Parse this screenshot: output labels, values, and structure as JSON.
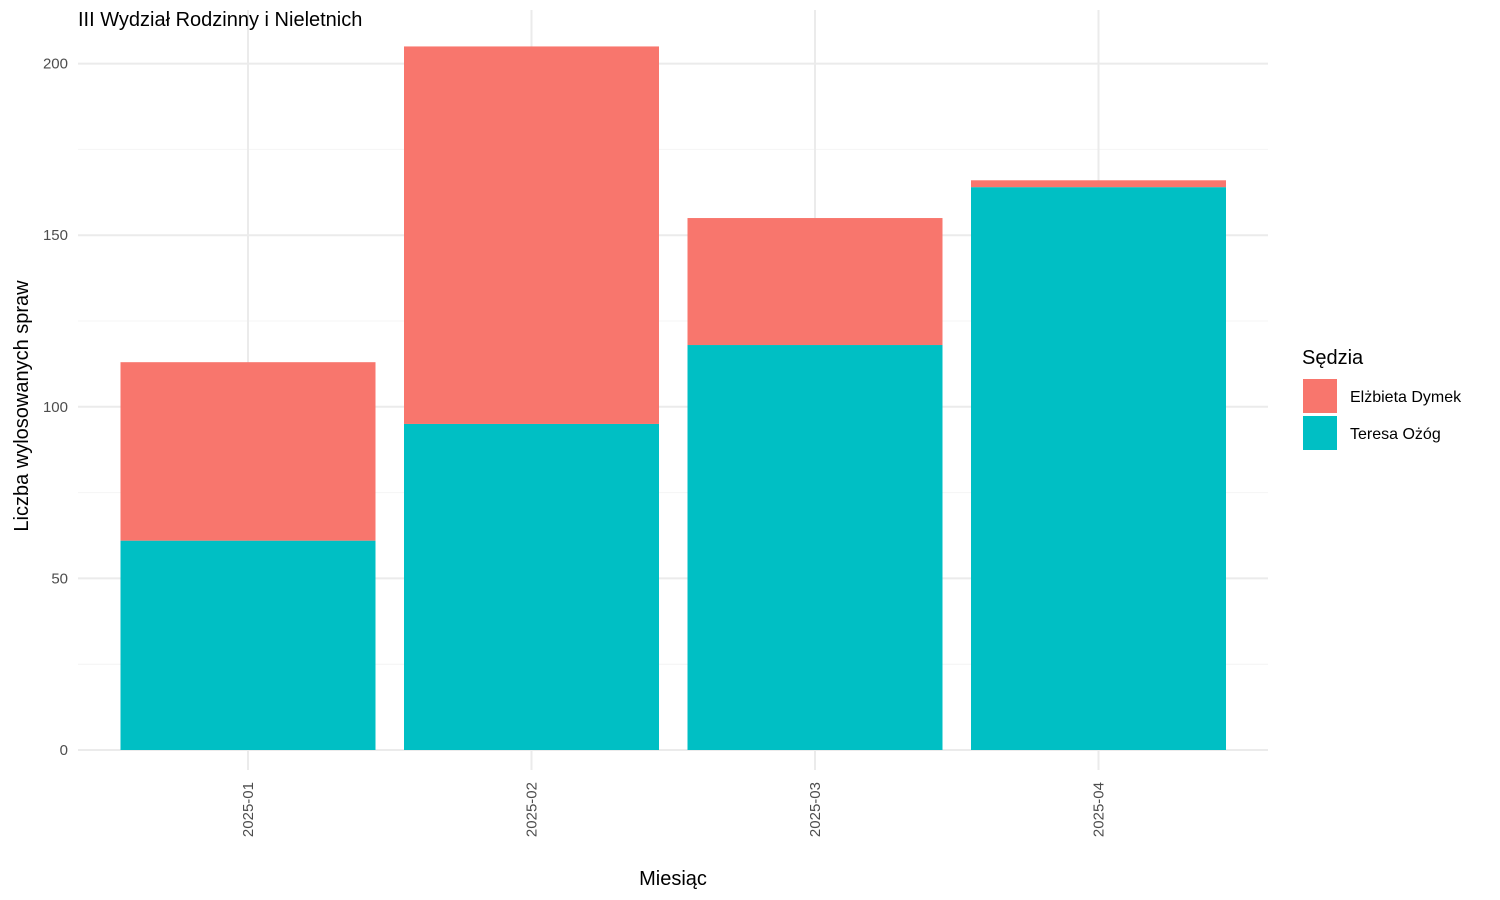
{
  "chart_data": {
    "type": "bar",
    "stacked": true,
    "title": "III Wydział Rodzinny i Nieletnich",
    "xlabel": "Miesiąc",
    "ylabel": "Liczba wylosowanych spraw",
    "categories": [
      "2025-01",
      "2025-02",
      "2025-03",
      "2025-04"
    ],
    "series": [
      {
        "name": "Teresa Ożóg",
        "color": "#00BFC4",
        "values": [
          61,
          95,
          118,
          164
        ]
      },
      {
        "name": "Elżbieta Dymek",
        "color": "#F8766D",
        "values": [
          52,
          110,
          37,
          2
        ]
      }
    ],
    "ylim": [
      0,
      205
    ],
    "yticks": [
      0,
      50,
      100,
      150,
      200
    ],
    "grid": true,
    "legend": {
      "title": "Sędzia",
      "position": "right",
      "entries": [
        "Elżbieta Dymek",
        "Teresa Ożóg"
      ]
    }
  }
}
